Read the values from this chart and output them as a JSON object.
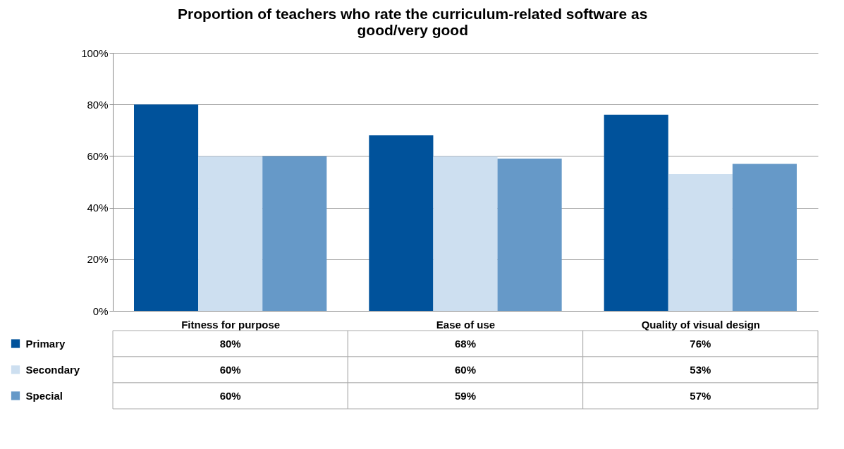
{
  "chart_data": {
    "type": "bar",
    "title": "Proportion of teachers who rate the curriculum-related software as good/very good",
    "categories": [
      "Fitness for purpose",
      "Ease of use",
      "Quality of visual design"
    ],
    "series": [
      {
        "name": "Primary",
        "color": "#00529b",
        "values": [
          80,
          68,
          76
        ],
        "value_labels": [
          "80%",
          "68%",
          "76%"
        ]
      },
      {
        "name": "Secondary",
        "color": "#cddff0",
        "values": [
          60,
          60,
          53
        ],
        "value_labels": [
          "60%",
          "60%",
          "53%"
        ]
      },
      {
        "name": "Special",
        "color": "#6699c8",
        "values": [
          60,
          59,
          57
        ],
        "value_labels": [
          "60%",
          "59%",
          "57%"
        ]
      }
    ],
    "ylim": [
      0,
      100
    ],
    "yticks": [
      {
        "value": 0,
        "label": "0%"
      },
      {
        "value": 20,
        "label": "20%"
      },
      {
        "value": 40,
        "label": "40%"
      },
      {
        "value": 60,
        "label": "60%"
      },
      {
        "value": 80,
        "label": "80%"
      },
      {
        "value": 100,
        "label": "100%"
      }
    ],
    "grid": "y",
    "legend": "bottom"
  }
}
